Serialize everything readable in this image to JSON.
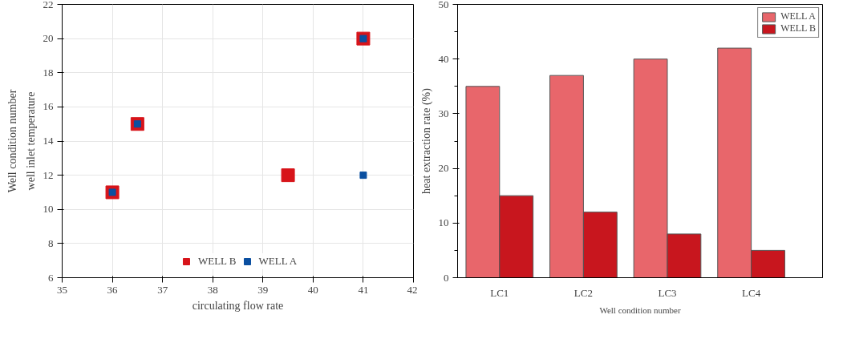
{
  "chart_data": [
    {
      "type": "scatter",
      "xlabel": "circulating flow rate",
      "ylabel": "well inlet temperature",
      "annotations": [
        "Well condition number"
      ],
      "xlim": [
        35,
        42
      ],
      "xticks": [
        35,
        36,
        37,
        38,
        39,
        40,
        41,
        42
      ],
      "ylim": [
        6,
        22
      ],
      "yticks": [
        6,
        8,
        10,
        12,
        14,
        16,
        18,
        20,
        22
      ],
      "grid": true,
      "legend": "bottom",
      "marker": "square",
      "series": [
        {
          "name": "WELL B",
          "color": "#d7141a",
          "x": [
            36,
            36.5,
            39.5,
            41
          ],
          "values": [
            11,
            15,
            12,
            20
          ]
        },
        {
          "name": "WELL A",
          "color": "#0a4fa0",
          "x": [
            36,
            36.5,
            41,
            41
          ],
          "values": [
            11,
            15,
            12,
            20
          ]
        }
      ]
    },
    {
      "type": "bar",
      "xlabel": "Well condition number",
      "ylabel": "heat extraction rate (%)",
      "categories": [
        "LC1",
        "LC2",
        "LC3",
        "LC4"
      ],
      "ylim": [
        0,
        50
      ],
      "yticks": [
        0,
        10,
        20,
        30,
        40,
        50
      ],
      "grid": false,
      "legend": "top right",
      "series": [
        {
          "name": "WELL A",
          "color": "#e8666b",
          "values": [
            35,
            37,
            40,
            42
          ]
        },
        {
          "name": "WELL B",
          "color": "#c8161e",
          "values": [
            15,
            12,
            8,
            5
          ]
        }
      ]
    }
  ]
}
